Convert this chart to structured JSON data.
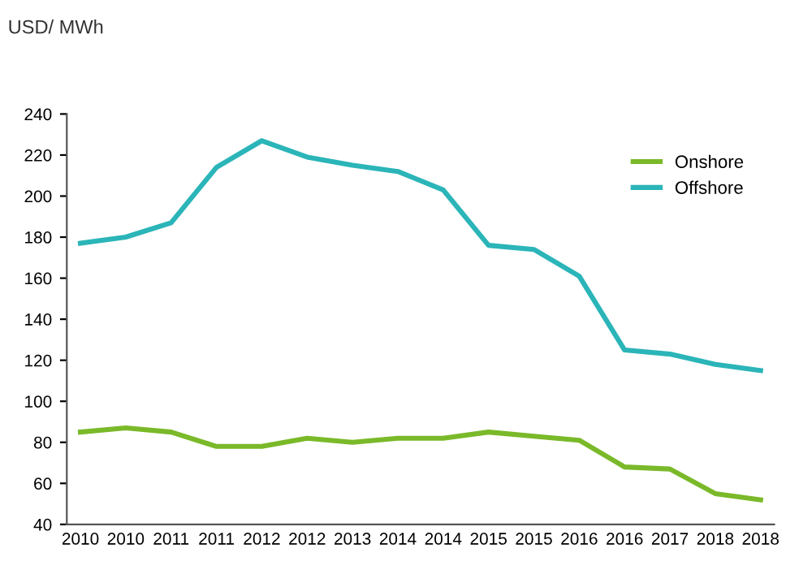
{
  "chart_data": {
    "type": "line",
    "ylabel": "USD/ MWh",
    "categories": [
      "2010",
      "2010",
      "2011",
      "2011",
      "2012",
      "2012",
      "2013",
      "2014",
      "2014",
      "2015",
      "2015",
      "2016",
      "2016",
      "2017",
      "2018",
      "2018"
    ],
    "series": [
      {
        "name": "Onshore",
        "color": "#7ab929",
        "values": [
          85,
          87,
          85,
          78,
          78,
          82,
          80,
          82,
          82,
          85,
          83,
          81,
          68,
          67,
          55,
          52
        ]
      },
      {
        "name": "Offshore",
        "color": "#2bb5b8",
        "values": [
          177,
          180,
          187,
          214,
          227,
          219,
          215,
          212,
          203,
          176,
          174,
          161,
          125,
          123,
          118,
          115
        ]
      }
    ],
    "ylim": [
      40,
      240
    ],
    "yticks": [
      40,
      60,
      80,
      100,
      120,
      140,
      160,
      180,
      200,
      220,
      240
    ],
    "grid": false,
    "legend": "top right",
    "marker": "none",
    "line_style": "solid"
  }
}
